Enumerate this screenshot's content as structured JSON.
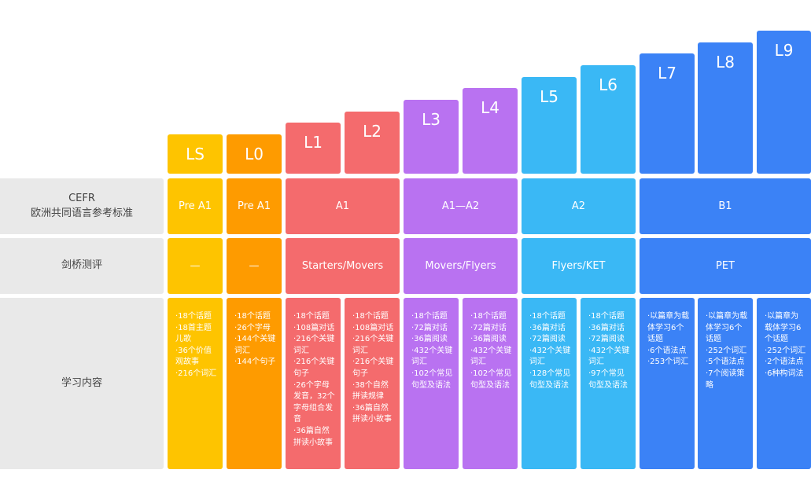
{
  "colors": {
    "yellow": "#fec400",
    "orange": "#fe9b00",
    "red": "#f46b6d",
    "purple": "#b972f1",
    "cyan": "#3ab8f5",
    "blue": "#3b82f6",
    "label_bg": "#e9e9e9"
  },
  "row_labels": {
    "cefr_line1": "CEFR",
    "cefr_line2": "欧洲共同语言参考标准",
    "cambridge": "剑桥测评",
    "content": "学习内容"
  },
  "levels": [
    {
      "name": "LS",
      "color": "yellow",
      "content": [
        "·18个话题",
        "·18首主题儿歌",
        "·36个价值观故事",
        "·216个词汇"
      ]
    },
    {
      "name": "L0",
      "color": "orange",
      "content": [
        "·18个话题",
        "·26个字母",
        "·144个关键词汇",
        "·144个句子"
      ]
    },
    {
      "name": "L1",
      "color": "red",
      "content": [
        "·18个话题",
        "·108篇对话",
        "·216个关键词汇",
        "·216个关键句子",
        "·26个字母发音，32个字母组合发音",
        "·36篇自然拼读小故事"
      ]
    },
    {
      "name": "L2",
      "color": "red",
      "content": [
        "·18个话题",
        "·108篇对话",
        "·216个关键词汇",
        "·216个关键句子",
        "·38个自然拼读规律",
        "·36篇自然拼读小故事"
      ]
    },
    {
      "name": "L3",
      "color": "purple",
      "content": [
        "·18个话题",
        "·72篇对话",
        "·36篇阅读",
        "·432个关键词汇",
        "·102个常见句型及语法"
      ]
    },
    {
      "name": "L4",
      "color": "purple",
      "content": [
        "·18个话题",
        "·72篇对话",
        "·36篇阅读",
        "·432个关键词汇",
        "·102个常见句型及语法"
      ]
    },
    {
      "name": "L5",
      "color": "cyan",
      "content": [
        "·18个话题",
        "·36篇对话",
        "·72篇阅读",
        "·432个关键词汇",
        "·128个常见句型及语法"
      ]
    },
    {
      "name": "L6",
      "color": "cyan",
      "content": [
        "·18个话题",
        "·36篇对话",
        "·72篇阅读",
        "·432个关键词汇",
        "·97个常见句型及语法"
      ]
    },
    {
      "name": "L7",
      "color": "blue",
      "content": [
        "·以篇章为载体学习6个话题",
        "·6个语法点",
        "·253个词汇"
      ]
    },
    {
      "name": "L8",
      "color": "blue",
      "content": [
        "·以篇章为载体学习6个话题",
        "·252个词汇",
        "·5个语法点",
        "·7个阅读策略"
      ]
    },
    {
      "name": "L9",
      "color": "blue",
      "content": [
        "·以篇章为载体学习6个话题",
        "·252个词汇",
        "·2个语法点",
        "·6种构词法"
      ]
    }
  ],
  "cefr": [
    {
      "label": "Pre A1",
      "color": "yellow"
    },
    {
      "label": "Pre A1",
      "color": "orange"
    },
    {
      "label": "A1",
      "color": "red"
    },
    {
      "label": "A1—A2",
      "color": "purple"
    },
    {
      "label": "A2",
      "color": "cyan"
    },
    {
      "label": "B1",
      "color": "blue"
    }
  ],
  "cambridge": [
    {
      "label": "—",
      "color": "yellow"
    },
    {
      "label": "—",
      "color": "orange"
    },
    {
      "label": "Starters/Movers",
      "color": "red"
    },
    {
      "label": "Movers/Flyers",
      "color": "purple"
    },
    {
      "label": "Flyers/KET",
      "color": "cyan"
    },
    {
      "label": "PET",
      "color": "blue"
    }
  ]
}
